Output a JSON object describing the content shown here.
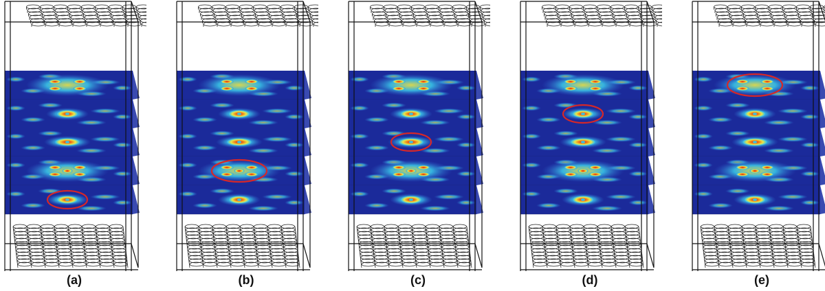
{
  "figure": {
    "description": "Five 3D simulation panels of a layered structure with field-intensity colormap slices; a red ellipse highlights the localized mode in a different layer per panel",
    "colormap": [
      "#1b2a9a",
      "#2f5fd0",
      "#39c3e6",
      "#e9e84a",
      "#f08a1c",
      "#d7191c"
    ],
    "highlight_color": "#d62728",
    "layers_count": 5,
    "panels": [
      {
        "label": "(a)",
        "highlighted_layer": 5
      },
      {
        "label": "(b)",
        "highlighted_layer": 4
      },
      {
        "label": "(c)",
        "highlighted_layer": 3
      },
      {
        "label": "(d)",
        "highlighted_layer": 2
      },
      {
        "label": "(e)",
        "highlighted_layer": 1
      }
    ],
    "layers": [
      {
        "index": 1,
        "pattern": "ring-quad"
      },
      {
        "index": 2,
        "pattern": "dot-small"
      },
      {
        "index": 3,
        "pattern": "dot-medium"
      },
      {
        "index": 4,
        "pattern": "ring-multi"
      },
      {
        "index": 5,
        "pattern": "dot-small"
      }
    ]
  }
}
